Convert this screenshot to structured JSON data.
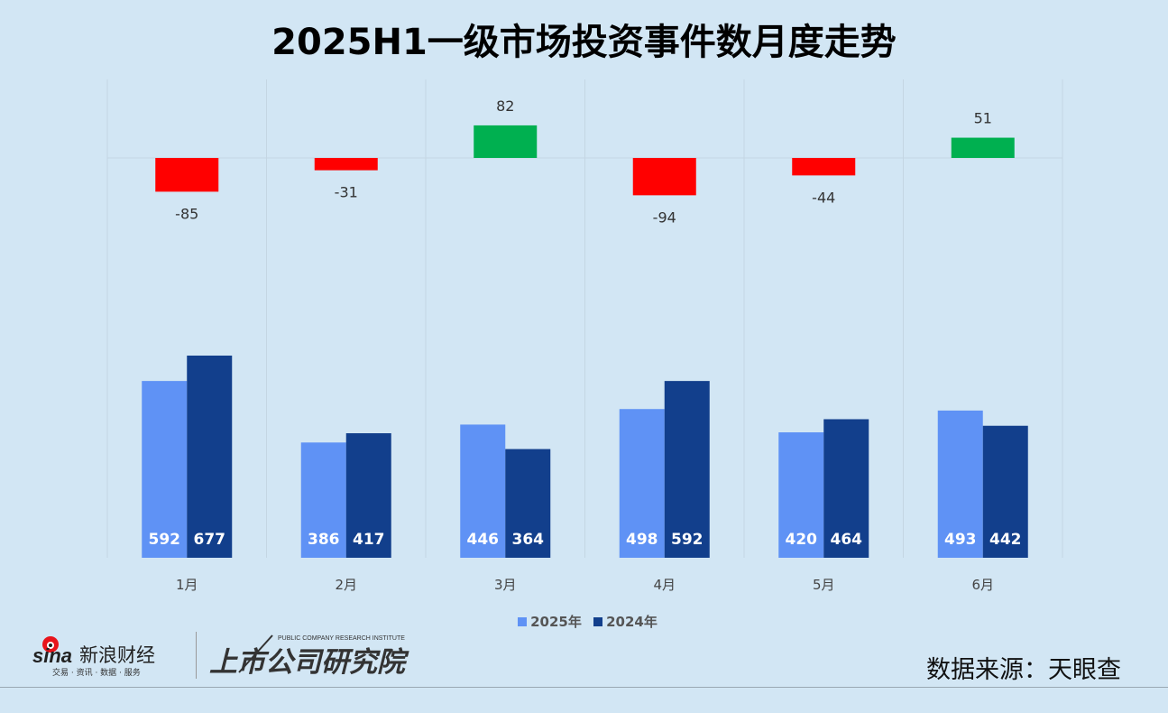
{
  "chart_data": {
    "type": "bar",
    "title": "2025H1一级市场投资事件数月度走势",
    "categories": [
      "1月",
      "2月",
      "3月",
      "4月",
      "5月",
      "6月"
    ],
    "series": [
      {
        "name": "2025年",
        "color": "#5f92f5",
        "values": [
          592,
          386,
          446,
          498,
          420,
          493
        ]
      },
      {
        "name": "2024年",
        "color": "#123f8c",
        "values": [
          677,
          417,
          364,
          592,
          464,
          442
        ]
      }
    ],
    "difference": {
      "values": [
        -85,
        -31,
        82,
        -94,
        -44,
        51
      ],
      "positive_color": "#00b050",
      "negative_color": "#ff0000"
    },
    "xlabel": "",
    "ylabel": "",
    "grid": "vertical",
    "legend": "bottom"
  },
  "source": "数据来源：天眼查",
  "logos": {
    "sina": "sina新浪财经",
    "sina_tagline": "交易 · 资讯 · 数据 · 服务",
    "institute": "上市公司研究院",
    "institute_en": "PUBLIC COMPANY RESEARCH INSTITUTE"
  }
}
